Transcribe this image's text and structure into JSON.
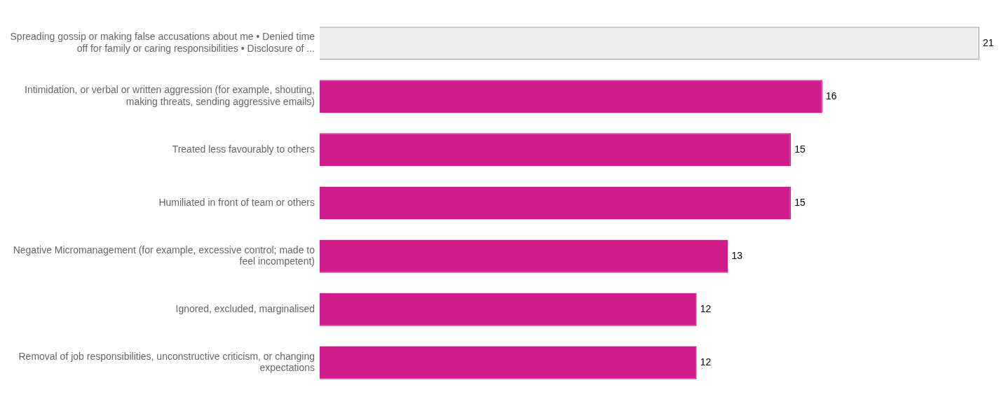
{
  "chart_data": {
    "type": "bar",
    "orientation": "horizontal",
    "categories": [
      "Spreading gossip or making false accusations about me • Denied time off for family or caring responsibilities • Disclosure of ...",
      "Intimidation, or verbal or written aggression (for example, shouting, making threats, sending aggressive emails)",
      "Treated less favourably to others",
      "Humiliated in front of team or others",
      "Negative Micromanagement (for example, excessive control; made to feel incompetent)",
      "Ignored, excluded, marginalised",
      "Removal of job responsibilities, unconstructive criticism, or changing expectations"
    ],
    "values": [
      21,
      16,
      15,
      15,
      13,
      12,
      12
    ],
    "colors": [
      "#eeeeee",
      "#d01c8b",
      "#d01c8b",
      "#d01c8b",
      "#d01c8b",
      "#d01c8b",
      "#d01c8b"
    ],
    "xlim": [
      0,
      21
    ],
    "data_labels": true,
    "grid": false,
    "legend": false,
    "tick_labels": "y"
  }
}
